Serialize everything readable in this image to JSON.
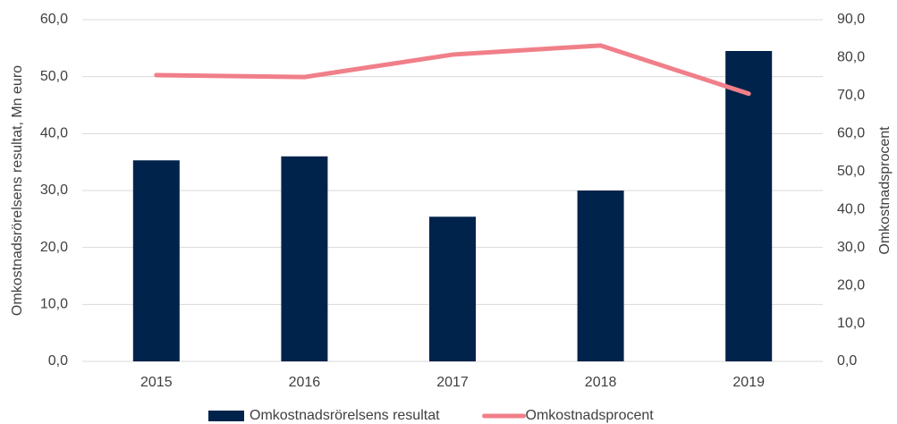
{
  "chart_data": {
    "type": "bar",
    "categories": [
      "2015",
      "2016",
      "2017",
      "2018",
      "2019"
    ],
    "series": [
      {
        "name": "Omkostnadsrörelsens resultat",
        "color": "#00234b",
        "values": [
          35.3,
          36.0,
          25.4,
          30.0,
          54.5
        ]
      },
      {
        "name": "Omkostnadsprocent",
        "type": "line",
        "axis": "y2",
        "color": "#f07f89",
        "values": [
          75.4,
          74.9,
          80.8,
          83.2,
          70.5
        ]
      }
    ],
    "ylabel": "Omkostnadsrörelsens resultat, Mn euro",
    "y2label": "Omkostnadsprocent",
    "ylim": [
      0,
      60
    ],
    "yticks": [
      {
        "value": 0,
        "label": "0,0"
      },
      {
        "value": 10,
        "label": "10,0"
      },
      {
        "value": 20,
        "label": "20,0"
      },
      {
        "value": 30,
        "label": "30,0"
      },
      {
        "value": 40,
        "label": "40,0"
      },
      {
        "value": 50,
        "label": "50,0"
      },
      {
        "value": 60,
        "label": "60,0"
      }
    ],
    "y2lim": [
      0,
      90
    ],
    "y2ticks": [
      {
        "value": 0,
        "label": "0,0"
      },
      {
        "value": 10,
        "label": "10,0"
      },
      {
        "value": 20,
        "label": "20,0"
      },
      {
        "value": 30,
        "label": "30,0"
      },
      {
        "value": 40,
        "label": "40,0"
      },
      {
        "value": 50,
        "label": "50,0"
      },
      {
        "value": 60,
        "label": "60,0"
      },
      {
        "value": 70,
        "label": "70,0"
      },
      {
        "value": 80,
        "label": "80,0"
      },
      {
        "value": 90,
        "label": "90,0"
      }
    ],
    "grid": true,
    "legend": "bottom"
  }
}
